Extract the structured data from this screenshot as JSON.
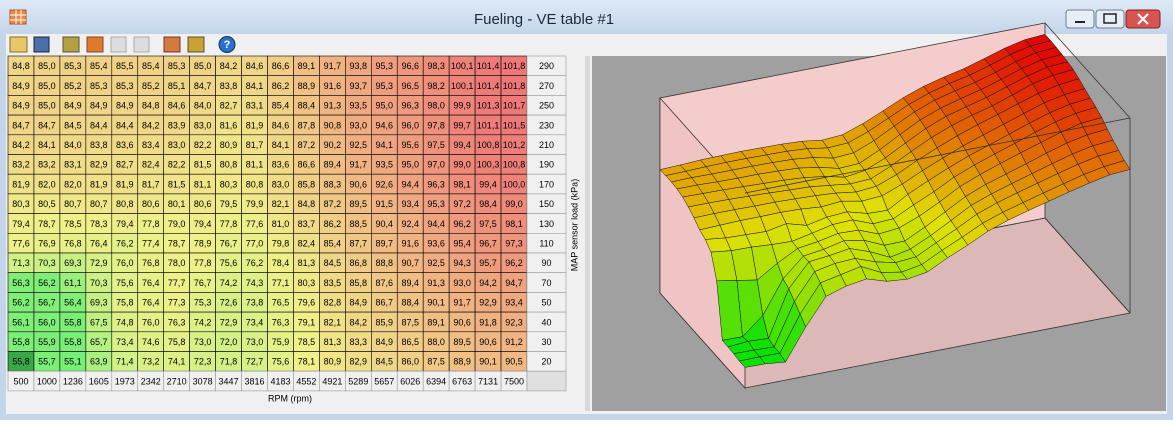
{
  "window": {
    "title": "Fueling - VE table #1"
  },
  "table": {
    "x_label": "RPM (rpm)",
    "y_label": "MAP sensor load (kPa)",
    "rpm_values": [
      500,
      1000,
      1236,
      1605,
      1973,
      2342,
      2710,
      3078,
      3447,
      3816,
      4183,
      4552,
      4921,
      5289,
      5657,
      6026,
      6394,
      6763,
      7131,
      7500
    ],
    "load_values": [
      290,
      270,
      250,
      230,
      210,
      190,
      170,
      150,
      130,
      110,
      90,
      70,
      50,
      40,
      30,
      20
    ],
    "rows": [
      [
        "84,8",
        "85,0",
        "85,3",
        "85,4",
        "85,5",
        "85,4",
        "85,3",
        "85,0",
        "84,2",
        "84,6",
        "86,6",
        "89,1",
        "91,7",
        "93,8",
        "95,3",
        "96,6",
        "98,3",
        "100,1",
        "101,4",
        "101,8"
      ],
      [
        "84,9",
        "85,0",
        "85,2",
        "85,3",
        "85,3",
        "85,2",
        "85,1",
        "84,7",
        "83,8",
        "84,1",
        "86,2",
        "88,9",
        "91,6",
        "93,7",
        "95,3",
        "96,5",
        "98,2",
        "100,1",
        "101,4",
        "101,8"
      ],
      [
        "84,9",
        "85,0",
        "84,9",
        "84,9",
        "84,9",
        "84,8",
        "84,6",
        "84,0",
        "82,7",
        "83,1",
        "85,4",
        "88,4",
        "91,3",
        "93,5",
        "95,0",
        "96,3",
        "98,0",
        "99,9",
        "101,3",
        "101,7"
      ],
      [
        "84,7",
        "84,7",
        "84,5",
        "84,4",
        "84,4",
        "84,2",
        "83,9",
        "83,0",
        "81,6",
        "81,9",
        "84,6",
        "87,8",
        "90,8",
        "93,0",
        "94,6",
        "96,0",
        "97,8",
        "99,7",
        "101,1",
        "101,5"
      ],
      [
        "84,2",
        "84,1",
        "84,0",
        "83,8",
        "83,6",
        "83,4",
        "83,0",
        "82,2",
        "80,9",
        "81,7",
        "84,1",
        "87,2",
        "90,2",
        "92,5",
        "94,1",
        "95,6",
        "97,5",
        "99,4",
        "100,8",
        "101,2"
      ],
      [
        "83,2",
        "83,2",
        "83,1",
        "82,9",
        "82,7",
        "82,4",
        "82,2",
        "81,5",
        "80,8",
        "81,1",
        "83,6",
        "86,6",
        "89,4",
        "91,7",
        "93,5",
        "95,0",
        "97,0",
        "99,0",
        "100,3",
        "100,8"
      ],
      [
        "81,9",
        "82,0",
        "82,0",
        "81,9",
        "81,9",
        "81,7",
        "81,5",
        "81,1",
        "80,3",
        "80,8",
        "83,0",
        "85,8",
        "88,3",
        "90,6",
        "92,6",
        "94,4",
        "96,3",
        "98,1",
        "99,4",
        "100,0"
      ],
      [
        "80,3",
        "80,5",
        "80,7",
        "80,7",
        "80,8",
        "80,6",
        "80,1",
        "80,6",
        "79,5",
        "79,9",
        "82,1",
        "84,8",
        "87,2",
        "89,5",
        "91,5",
        "93,4",
        "95,3",
        "97,2",
        "98,4",
        "99,0"
      ],
      [
        "79,4",
        "78,7",
        "78,5",
        "78,3",
        "79,4",
        "77,8",
        "79,0",
        "79,4",
        "77,8",
        "77,6",
        "81,0",
        "83,7",
        "86,2",
        "88,5",
        "90,4",
        "92,4",
        "94,4",
        "96,2",
        "97,5",
        "98,1"
      ],
      [
        "77,6",
        "76,9",
        "76,8",
        "76,4",
        "76,2",
        "77,4",
        "78,7",
        "78,9",
        "76,7",
        "77,0",
        "79,8",
        "82,4",
        "85,4",
        "87,7",
        "89,7",
        "91,6",
        "93,6",
        "95,4",
        "96,7",
        "97,3"
      ],
      [
        "71,3",
        "70,3",
        "69,3",
        "72,9",
        "76,0",
        "76,8",
        "78,0",
        "77,8",
        "75,6",
        "76,2",
        "78,4",
        "81,3",
        "84,5",
        "86,8",
        "88,8",
        "90,7",
        "92,5",
        "94,3",
        "95,7",
        "96,2"
      ],
      [
        "56,3",
        "56,2",
        "61,1",
        "70,3",
        "75,6",
        "76,4",
        "77,7",
        "76,7",
        "74,2",
        "74,3",
        "77,1",
        "80,3",
        "83,5",
        "85,8",
        "87,6",
        "89,4",
        "91,3",
        "93,0",
        "94,2",
        "94,7"
      ],
      [
        "56,2",
        "56,7",
        "56,4",
        "69,3",
        "75,8",
        "76,4",
        "77,3",
        "75,3",
        "72,6",
        "73,8",
        "76,5",
        "79,6",
        "82,8",
        "84,9",
        "86,7",
        "88,4",
        "90,1",
        "91,7",
        "92,9",
        "93,4"
      ],
      [
        "56,1",
        "56,0",
        "55,8",
        "67,5",
        "74,8",
        "76,0",
        "76,3",
        "74,2",
        "72,9",
        "73,4",
        "76,3",
        "79,1",
        "82,1",
        "84,2",
        "85,9",
        "87,5",
        "89,1",
        "90,6",
        "91,8",
        "92,3"
      ],
      [
        "55,8",
        "55,9",
        "55,8",
        "65,7",
        "73,4",
        "74,6",
        "75,8",
        "73,0",
        "72,0",
        "73,0",
        "75,9",
        "78,5",
        "81,3",
        "83,3",
        "84,9",
        "86,5",
        "88,0",
        "89,5",
        "90,6",
        "91,2"
      ],
      [
        "55,8",
        "55,7",
        "55,1",
        "63,9",
        "71,4",
        "73,2",
        "74,1",
        "72,3",
        "71,8",
        "72,7",
        "75,6",
        "78,1",
        "80,9",
        "82,9",
        "84,5",
        "86,0",
        "87,5",
        "88,9",
        "90,1",
        "90,5"
      ]
    ]
  }
}
